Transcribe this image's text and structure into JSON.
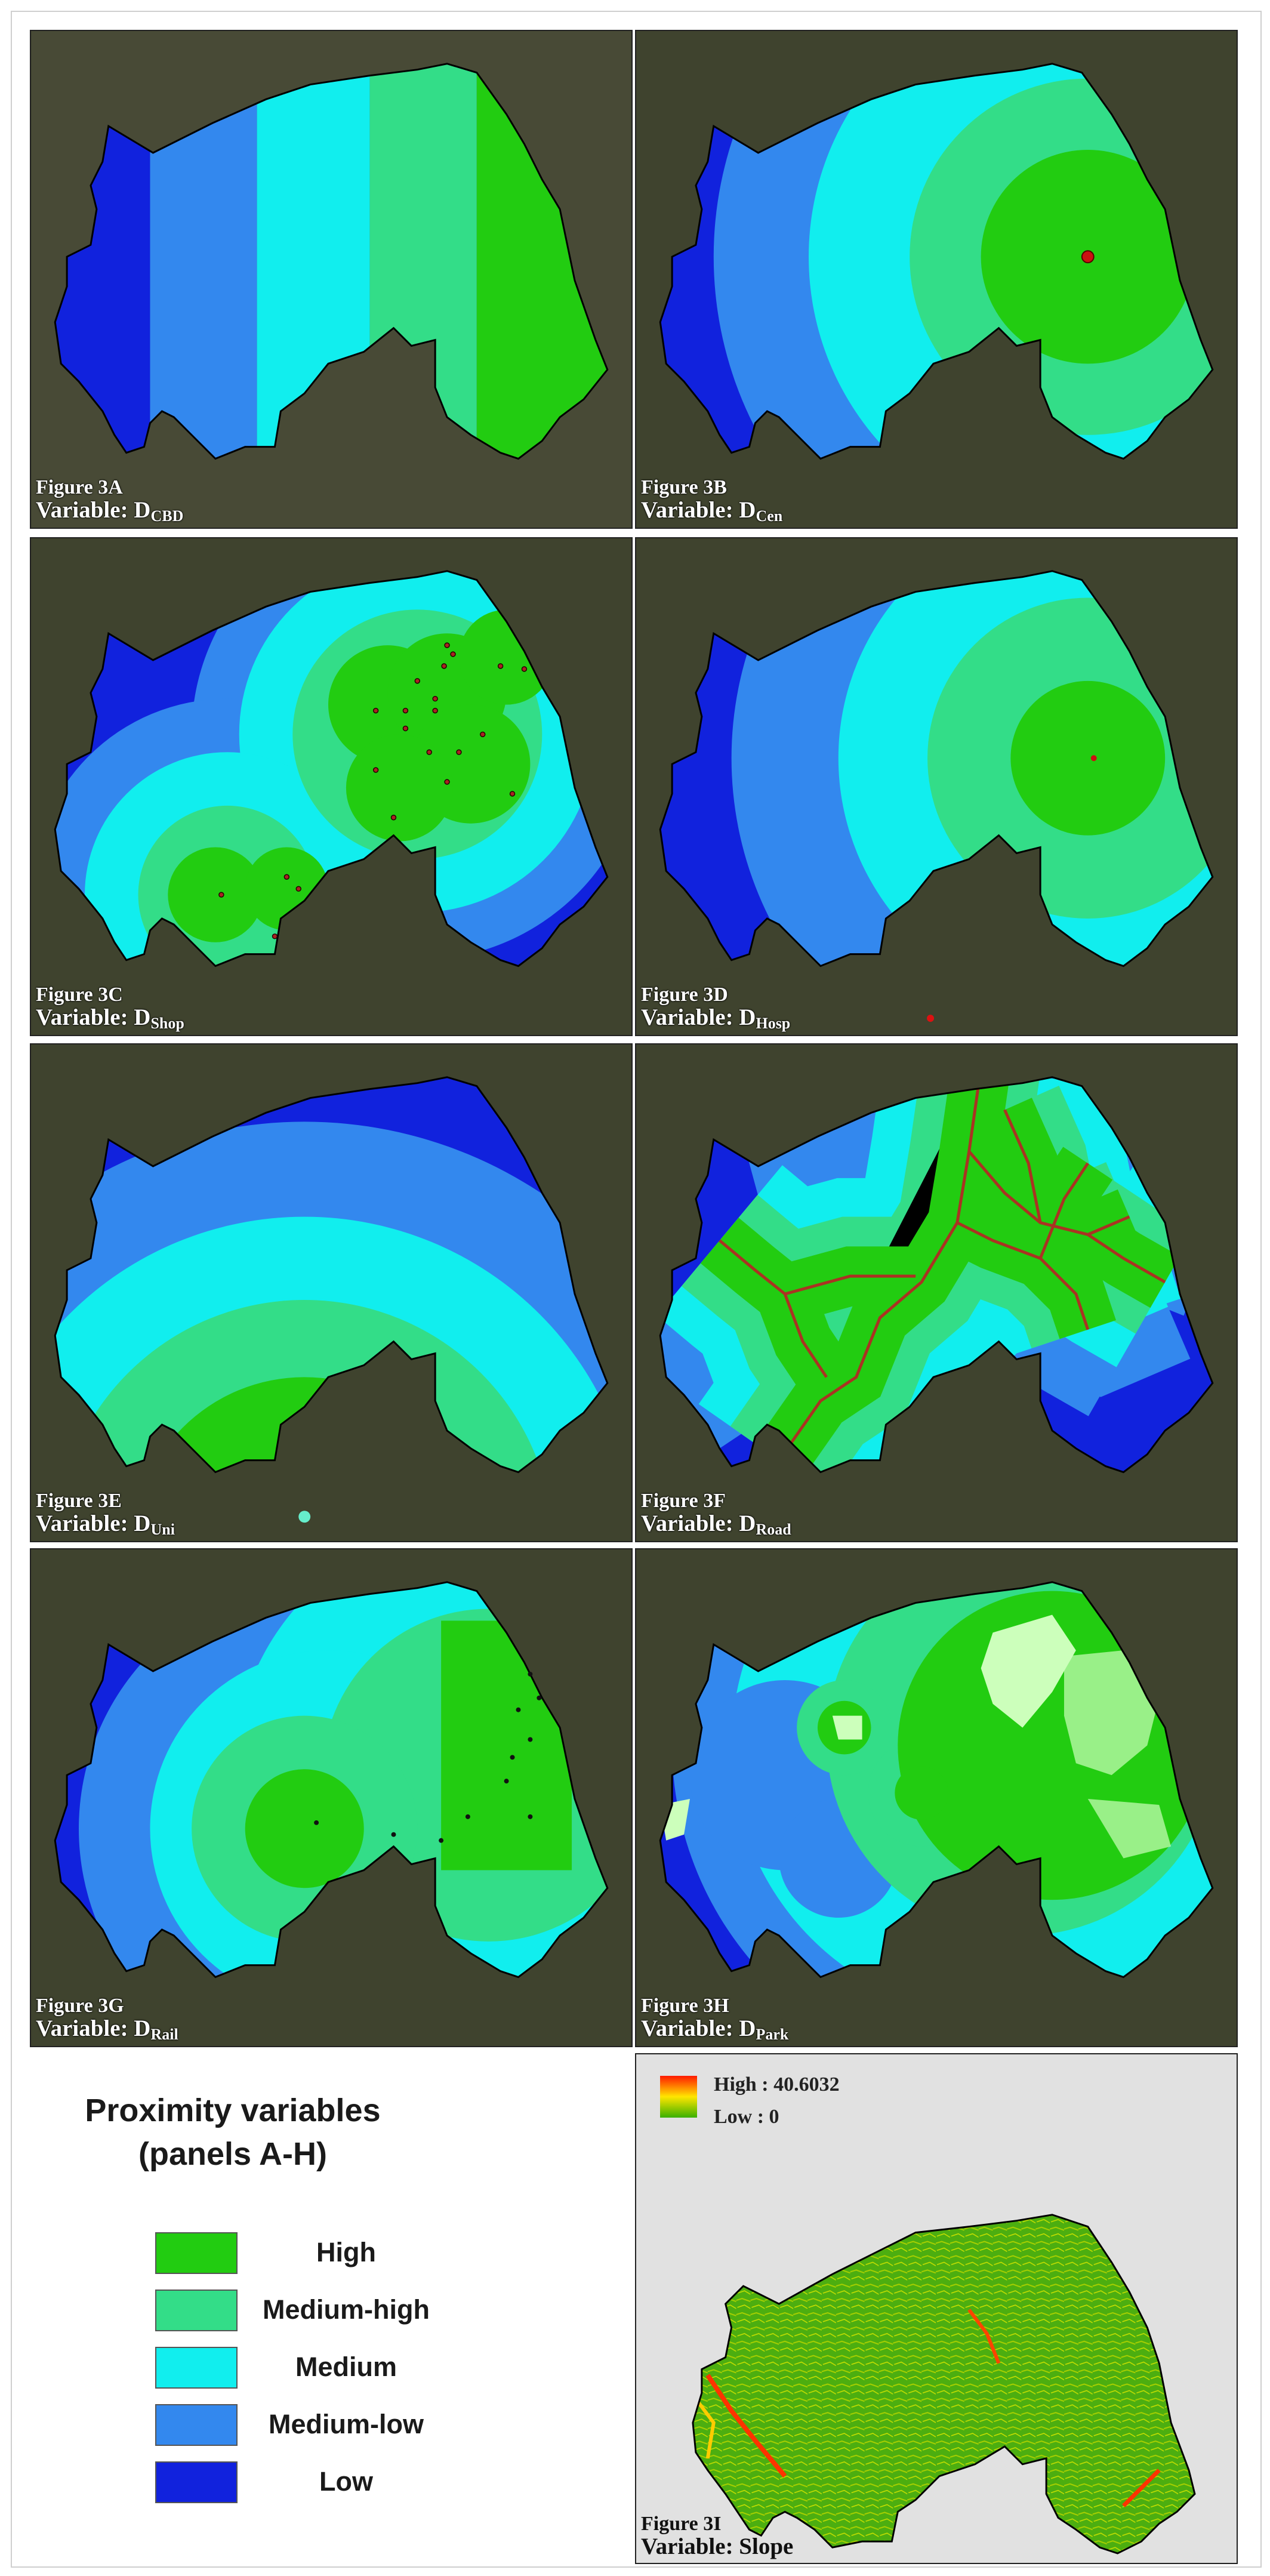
{
  "panels": [
    {
      "figure": "Figure 3A",
      "variable": "Variable: D",
      "sub": "CBD"
    },
    {
      "figure": "Figure 3B",
      "variable": "Variable: D",
      "sub": "Cen"
    },
    {
      "figure": "Figure 3C",
      "variable": "Variable: D",
      "sub": "Shop"
    },
    {
      "figure": "Figure 3D",
      "variable": "Variable: D",
      "sub": "Hosp"
    },
    {
      "figure": "Figure 3E",
      "variable": "Variable: D",
      "sub": "Uni"
    },
    {
      "figure": "Figure 3F",
      "variable": "Variable: D",
      "sub": "Road"
    },
    {
      "figure": "Figure 3G",
      "variable": "Variable: D",
      "sub": "Rail"
    },
    {
      "figure": "Figure 3H",
      "variable": "Variable: D",
      "sub": "Park"
    }
  ],
  "legend": {
    "title_line1": "Proximity variables",
    "title_line2": "(panels A-H)",
    "classes": [
      {
        "label": "High",
        "color": "#22cc11"
      },
      {
        "label": "Medium-high",
        "color": "#33dd88"
      },
      {
        "label": "Medium",
        "color": "#11eeee"
      },
      {
        "label": "Medium-low",
        "color": "#3388ee"
      },
      {
        "label": "Low",
        "color": "#1122dd"
      }
    ]
  },
  "slope": {
    "high_label": "High : 40.6032",
    "low_label": "Low : 0",
    "figure": "Figure 3I",
    "variable": "Variable: Slope"
  },
  "colors": {
    "high": "#22cc11",
    "medium_high": "#33dd88",
    "medium": "#11eeee",
    "medium_low": "#3388ee",
    "low": "#1122dd",
    "imagery": "#3d3f2c",
    "road": "#aa3322",
    "park_light": "#ccffbb"
  }
}
